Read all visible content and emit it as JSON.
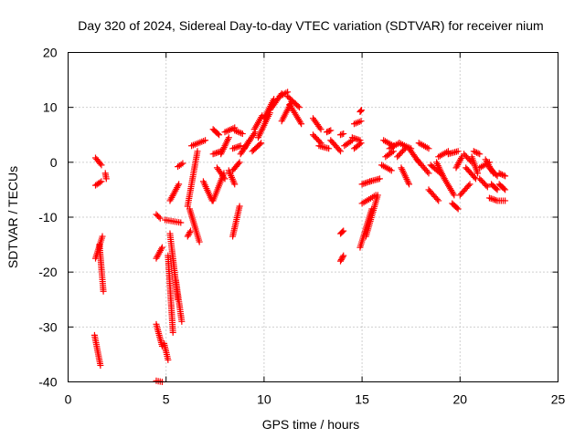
{
  "chart_data": {
    "type": "scatter",
    "title": "Day 320 of 2024, Sidereal Day-to-day VTEC variation (SDTVAR) for receiver nium",
    "xlabel": "GPS time / hours",
    "ylabel": "SDTVAR / TECUs",
    "xlim": [
      0,
      25
    ],
    "ylim": [
      -40,
      20
    ],
    "xticks": [
      "0",
      "5",
      "10",
      "15",
      "20",
      "25"
    ],
    "yticks": [
      "-40",
      "-30",
      "-20",
      "-10",
      "0",
      "10",
      "20"
    ],
    "grid": true,
    "marker": "+",
    "color": "#ff0000",
    "series": [
      {
        "name": "SDTVAR",
        "segments": [
          {
            "x0": 1.4,
            "x1": 1.7,
            "y0": 0.8,
            "y1": -0.5
          },
          {
            "x0": 1.4,
            "x1": 1.7,
            "y0": -4.2,
            "y1": -3.5
          },
          {
            "x0": 1.4,
            "x1": 1.75,
            "y0": -17.5,
            "y1": -13.5
          },
          {
            "x0": 1.6,
            "x1": 1.8,
            "y0": -15,
            "y1": -23.5
          },
          {
            "x0": 1.35,
            "x1": 1.65,
            "y0": -31.5,
            "y1": -37
          },
          {
            "x0": 1.9,
            "x1": 1.95,
            "y0": -2,
            "y1": -3
          },
          {
            "x0": 4.5,
            "x1": 4.8,
            "y0": -17.5,
            "y1": -15.5
          },
          {
            "x0": 4.5,
            "x1": 4.7,
            "y0": -9.5,
            "y1": -10.2
          },
          {
            "x0": 4.5,
            "x1": 4.8,
            "y0": -29.5,
            "y1": -33.5
          },
          {
            "x0": 4.5,
            "x1": 4.8,
            "y0": -39.8,
            "y1": -40
          },
          {
            "x0": 4.9,
            "x1": 5.1,
            "y0": -33,
            "y1": -36
          },
          {
            "x0": 5.1,
            "x1": 5.35,
            "y0": -17,
            "y1": -31
          },
          {
            "x0": 5.2,
            "x1": 5.6,
            "y0": -13,
            "y1": -25
          },
          {
            "x0": 5.5,
            "x1": 5.8,
            "y0": -21.5,
            "y1": -29
          },
          {
            "x0": 4.95,
            "x1": 5.75,
            "y0": -10.5,
            "y1": -11
          },
          {
            "x0": 5.2,
            "x1": 5.65,
            "y0": -7,
            "y1": -4
          },
          {
            "x0": 5.6,
            "x1": 5.85,
            "y0": -0.8,
            "y1": -0.2
          },
          {
            "x0": 6.1,
            "x1": 6.25,
            "y0": -13.5,
            "y1": -12.5
          },
          {
            "x0": 6.2,
            "x1": 6.7,
            "y0": -8.5,
            "y1": -14.5
          },
          {
            "x0": 6.1,
            "x1": 6.6,
            "y0": -8,
            "y1": 2
          },
          {
            "x0": 6.3,
            "x1": 7,
            "y0": 3,
            "y1": 4
          },
          {
            "x0": 6.9,
            "x1": 7.35,
            "y0": -3.5,
            "y1": -7
          },
          {
            "x0": 7.4,
            "x1": 7.7,
            "y0": 6,
            "y1": 5
          },
          {
            "x0": 7.4,
            "x1": 7.8,
            "y0": 1.5,
            "y1": 2
          },
          {
            "x0": 7.4,
            "x1": 7.95,
            "y0": -7,
            "y1": -2
          },
          {
            "x0": 7.6,
            "x1": 8,
            "y0": -1,
            "y1": -3
          },
          {
            "x0": 7.8,
            "x1": 8.2,
            "y0": 1.5,
            "y1": 4.5
          },
          {
            "x0": 8,
            "x1": 8.5,
            "y0": 5.5,
            "y1": 6.3
          },
          {
            "x0": 8.5,
            "x1": 8.9,
            "y0": 5.8,
            "y1": 5.2
          },
          {
            "x0": 8.2,
            "x1": 8.5,
            "y0": -1.5,
            "y1": -4
          },
          {
            "x0": 8.4,
            "x1": 8.75,
            "y0": -1.5,
            "y1": 0
          },
          {
            "x0": 8.4,
            "x1": 8.8,
            "y0": 2.5,
            "y1": 3
          },
          {
            "x0": 8.4,
            "x1": 8.75,
            "y0": -13.5,
            "y1": -8
          },
          {
            "x0": 8.8,
            "x1": 9.25,
            "y0": 1.5,
            "y1": 4
          },
          {
            "x0": 9,
            "x1": 9.55,
            "y0": 2.5,
            "y1": 5.5
          },
          {
            "x0": 9.4,
            "x1": 9.85,
            "y0": 2,
            "y1": 3.5
          },
          {
            "x0": 9.5,
            "x1": 9.9,
            "y0": 6,
            "y1": 8.5
          },
          {
            "x0": 9.7,
            "x1": 10.3,
            "y0": 4.5,
            "y1": 9
          },
          {
            "x0": 10,
            "x1": 10.5,
            "y0": 8,
            "y1": 11.5
          },
          {
            "x0": 10.3,
            "x1": 10.9,
            "y0": 9.5,
            "y1": 12.5
          },
          {
            "x0": 10.8,
            "x1": 11.2,
            "y0": 12,
            "y1": 12.8
          },
          {
            "x0": 10.9,
            "x1": 11.4,
            "y0": 7.5,
            "y1": 11
          },
          {
            "x0": 11.2,
            "x1": 11.8,
            "y0": 12,
            "y1": 10
          },
          {
            "x0": 11.3,
            "x1": 11.9,
            "y0": 10.5,
            "y1": 7
          },
          {
            "x0": 12.5,
            "x1": 12.9,
            "y0": 8,
            "y1": 6
          },
          {
            "x0": 12.5,
            "x1": 12.9,
            "y0": 5,
            "y1": 3.5
          },
          {
            "x0": 12.8,
            "x1": 13.3,
            "y0": 3,
            "y1": 2.5
          },
          {
            "x0": 13.2,
            "x1": 13.4,
            "y0": 5.5,
            "y1": 5.8
          },
          {
            "x0": 13.4,
            "x1": 13.9,
            "y0": 4,
            "y1": 2
          },
          {
            "x0": 13.9,
            "x1": 14.05,
            "y0": 5,
            "y1": 5.2
          },
          {
            "x0": 13.9,
            "x1": 14.05,
            "y0": -13,
            "y1": -12.5
          },
          {
            "x0": 13.9,
            "x1": 14.05,
            "y0": -18,
            "y1": -17
          },
          {
            "x0": 14.1,
            "x1": 14.5,
            "y0": 3,
            "y1": 4
          },
          {
            "x0": 14.5,
            "x1": 14.9,
            "y0": 4.5,
            "y1": 4
          },
          {
            "x0": 14.6,
            "x1": 14.95,
            "y0": 2.5,
            "y1": 3.5
          },
          {
            "x0": 14.6,
            "x1": 14.95,
            "y0": 7,
            "y1": 7.5
          },
          {
            "x0": 14.9,
            "x1": 14.97,
            "y0": 9.2,
            "y1": 9.5
          },
          {
            "x0": 14.9,
            "x1": 15.5,
            "y0": -15.5,
            "y1": -8.5
          },
          {
            "x0": 15.2,
            "x1": 15.8,
            "y0": -13.5,
            "y1": -6
          },
          {
            "x0": 15,
            "x1": 15.7,
            "y0": -7.5,
            "y1": -6
          },
          {
            "x0": 15,
            "x1": 15.4,
            "y0": -4,
            "y1": -3.5
          },
          {
            "x0": 15.4,
            "x1": 15.9,
            "y0": -3.5,
            "y1": -3
          },
          {
            "x0": 16,
            "x1": 16.5,
            "y0": -0.5,
            "y1": -1.5
          },
          {
            "x0": 16.1,
            "x1": 16.6,
            "y0": 4,
            "y1": 3
          },
          {
            "x0": 16.2,
            "x1": 16.6,
            "y0": 1,
            "y1": 2
          },
          {
            "x0": 16.4,
            "x1": 16.9,
            "y0": 2.5,
            "y1": 3.5
          },
          {
            "x0": 16.8,
            "x1": 17.2,
            "y0": 1,
            "y1": 2.5
          },
          {
            "x0": 16.9,
            "x1": 17.5,
            "y0": 3.5,
            "y1": 2.5
          },
          {
            "x0": 17,
            "x1": 17.4,
            "y0": -1,
            "y1": -4
          },
          {
            "x0": 17.4,
            "x1": 17.9,
            "y0": 2.5,
            "y1": 0
          },
          {
            "x0": 17.8,
            "x1": 18.4,
            "y0": 0.5,
            "y1": -2
          },
          {
            "x0": 17.9,
            "x1": 18.4,
            "y0": 3.5,
            "y1": 2.5
          },
          {
            "x0": 18.4,
            "x1": 18.9,
            "y0": -5,
            "y1": -7
          },
          {
            "x0": 18.5,
            "x1": 19,
            "y0": -0.5,
            "y1": -2
          },
          {
            "x0": 18.8,
            "x1": 19.2,
            "y0": 0,
            "y1": -3
          },
          {
            "x0": 18.9,
            "x1": 19.4,
            "y0": 1,
            "y1": 2
          },
          {
            "x0": 19.2,
            "x1": 19.7,
            "y0": -3,
            "y1": -6
          },
          {
            "x0": 19.4,
            "x1": 19.9,
            "y0": 1.5,
            "y1": 2
          },
          {
            "x0": 19.6,
            "x1": 19.9,
            "y0": -7.5,
            "y1": -8.5
          },
          {
            "x0": 19.8,
            "x1": 20.1,
            "y0": -1,
            "y1": 1
          },
          {
            "x0": 20,
            "x1": 20.5,
            "y0": -6,
            "y1": -4
          },
          {
            "x0": 20.2,
            "x1": 20.6,
            "y0": 1.5,
            "y1": 0
          },
          {
            "x0": 20.3,
            "x1": 20.8,
            "y0": -1,
            "y1": -3
          },
          {
            "x0": 20.6,
            "x1": 20.9,
            "y0": 1,
            "y1": -2
          },
          {
            "x0": 20.7,
            "x1": 21,
            "y0": 2,
            "y1": 1.5
          },
          {
            "x0": 21,
            "x1": 21.5,
            "y0": -1,
            "y1": 0
          },
          {
            "x0": 21,
            "x1": 21.4,
            "y0": -3,
            "y1": -4.5
          },
          {
            "x0": 21.3,
            "x1": 21.7,
            "y0": 0.5,
            "y1": -2
          },
          {
            "x0": 21.5,
            "x1": 21.9,
            "y0": -1,
            "y1": -2.5
          },
          {
            "x0": 21.6,
            "x1": 21.9,
            "y0": -4,
            "y1": -5
          },
          {
            "x0": 21.5,
            "x1": 21.9,
            "y0": -6.5,
            "y1": -7
          },
          {
            "x0": 22,
            "x1": 22.3,
            "y0": -2,
            "y1": -2.5
          },
          {
            "x0": 22,
            "x1": 22.3,
            "y0": -4,
            "y1": -5
          },
          {
            "x0": 22,
            "x1": 22.3,
            "y0": -7,
            "y1": -7
          }
        ]
      }
    ]
  }
}
